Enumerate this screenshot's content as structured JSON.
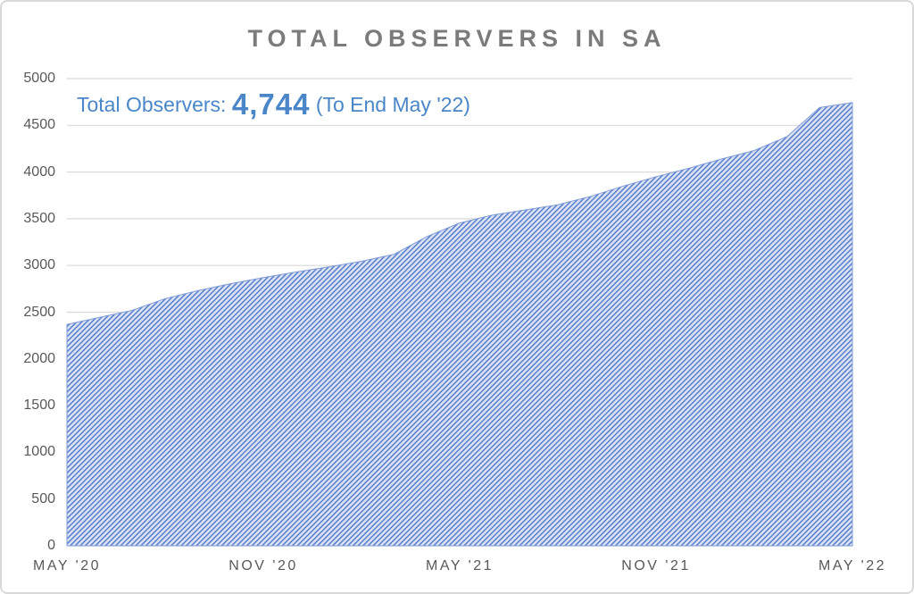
{
  "title": "TOTAL OBSERVERS IN SA",
  "annotation": {
    "prefix": "Total Observers: ",
    "value": "4,744",
    "suffix": " (To End May '22)"
  },
  "colors": {
    "title_text": "#7b7b7b",
    "axis_text": "#595959",
    "gridline": "#d9d9d9",
    "annotation_blue": "#4a86c8",
    "hatch_line": "#5b80cc",
    "hatch_bg": "#dce4f5",
    "area_edge": "#7f9bd7"
  },
  "chart_data": {
    "type": "area",
    "title": "TOTAL OBSERVERS IN SA",
    "x": [
      "May '20",
      "Jun '20",
      "Jul '20",
      "Aug '20",
      "Sep '20",
      "Oct '20",
      "Nov '20",
      "Dec '20",
      "Jan '21",
      "Feb '21",
      "Mar '21",
      "Apr '21",
      "May '21",
      "Jun '21",
      "Jul '21",
      "Aug '21",
      "Sep '21",
      "Oct '21",
      "Nov '21",
      "Dec '21",
      "Jan '22",
      "Feb '22",
      "Mar '22",
      "Apr '22",
      "May '22"
    ],
    "values": [
      2370,
      2445,
      2520,
      2645,
      2730,
      2805,
      2870,
      2930,
      2985,
      3045,
      3120,
      3310,
      3455,
      3540,
      3595,
      3650,
      3740,
      3850,
      3950,
      4040,
      4140,
      4230,
      4380,
      4690,
      4744
    ],
    "series_name": "Total Observers",
    "xlabel": "",
    "ylabel": "",
    "ylim": [
      0,
      5000
    ],
    "y_ticks": [
      0,
      500,
      1000,
      1500,
      2000,
      2500,
      3000,
      3500,
      4000,
      4500,
      5000
    ],
    "x_tick_labels": [
      "MAY '20",
      "NOV '20",
      "MAY '21",
      "NOV '21",
      "MAY '22"
    ],
    "grid": "horizontal",
    "legend": "none",
    "fill_style": "diagonal-hatch",
    "annotation_text": "Total Observers: 4,744 (To End May '22)"
  }
}
